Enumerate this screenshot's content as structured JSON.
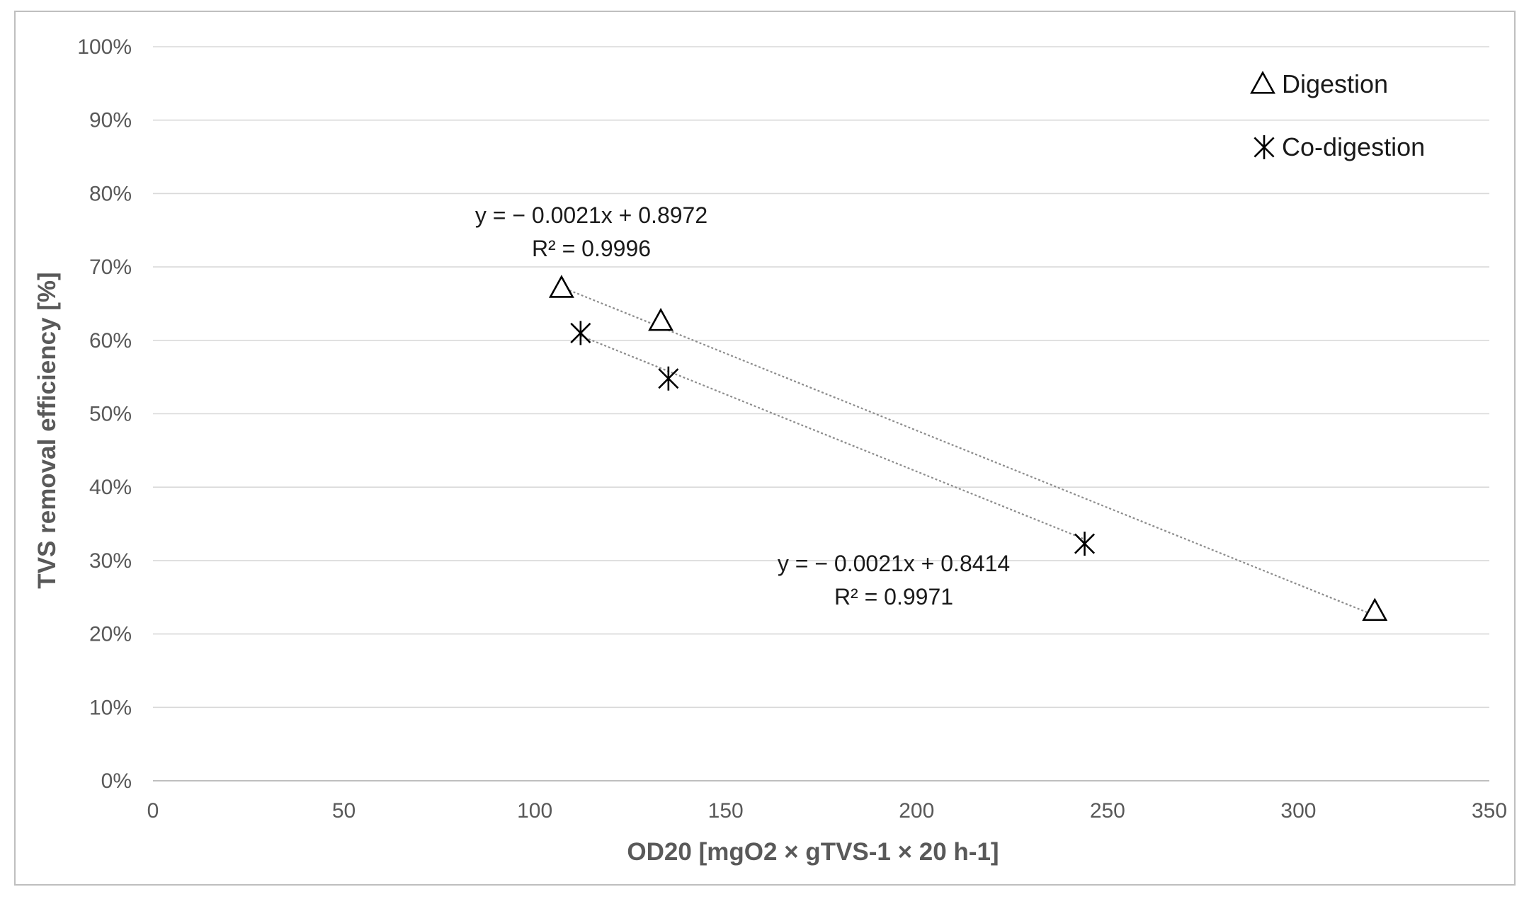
{
  "chart_data": {
    "type": "scatter",
    "title": "",
    "xlabel": "OD20  [mgO2 × gTVS-1 × 20 h-1]",
    "ylabel": "TVS removal efficiency [%]",
    "xlim": [
      0,
      350
    ],
    "ylim": [
      0,
      1
    ],
    "x_ticks": [
      0,
      50,
      100,
      150,
      200,
      250,
      300,
      350
    ],
    "x_tick_labels": [
      "0",
      "50",
      "100",
      "150",
      "200",
      "250",
      "300",
      "350"
    ],
    "y_ticks": [
      0,
      0.1,
      0.2,
      0.3,
      0.4,
      0.5,
      0.6,
      0.7,
      0.8,
      0.9,
      1.0
    ],
    "y_tick_labels": [
      "0%",
      "10%",
      "20%",
      "30%",
      "40%",
      "50%",
      "60%",
      "70%",
      "80%",
      "90%",
      "100%"
    ],
    "grid": "horizontal",
    "legend_position": "top-right",
    "series": [
      {
        "name": "Digestion",
        "marker": "triangle",
        "color": "#000000",
        "trendline_color": "#8c8c8c",
        "points": [
          {
            "x": 107,
            "y": 0.67
          },
          {
            "x": 133,
            "y": 0.625
          },
          {
            "x": 320,
            "y": 0.23
          }
        ],
        "trendline": {
          "slope": -0.0021,
          "intercept": 0.8972,
          "x_range": [
            107,
            320
          ]
        },
        "equation": "y = − 0.0021x + 0.8972",
        "r2": "R² = 0.9996"
      },
      {
        "name": "Co-digestion",
        "marker": "asterisk",
        "color": "#000000",
        "trendline_color": "#8c8c8c",
        "points": [
          {
            "x": 112,
            "y": 0.61
          },
          {
            "x": 135,
            "y": 0.548
          },
          {
            "x": 244,
            "y": 0.323
          }
        ],
        "trendline": {
          "slope": -0.0021,
          "intercept": 0.8414,
          "x_range": [
            112,
            244
          ]
        },
        "equation": "y = − 0.0021x + 0.8414",
        "r2": "R² = 0.9971"
      }
    ]
  }
}
